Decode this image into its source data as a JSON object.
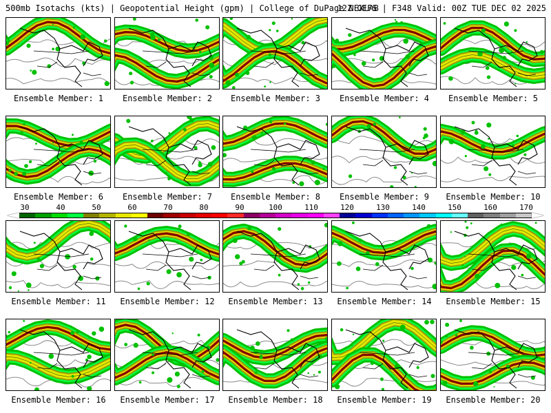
{
  "header": {
    "title": "500mb Isotachs (kts) | Geopotential Height (gpm) | College of DuPage NEXLAB",
    "run": "12Z GEFS | F348 Valid: 00Z TUE DEC 02 2025"
  },
  "colorbar": {
    "ticks": [
      "30",
      "40",
      "50",
      "60",
      "70",
      "80",
      "90",
      "100",
      "110",
      "120",
      "130",
      "140",
      "150",
      "160",
      "170"
    ],
    "colors": [
      "#006400",
      "#00a000",
      "#00dc00",
      "#00ff40",
      "#808000",
      "#b4b400",
      "#e6e600",
      "#ffff00",
      "#6e0000",
      "#a00000",
      "#c80000",
      "#e60000",
      "#ff0000",
      "#ff2828",
      "#8c0064",
      "#b40096",
      "#d200c8",
      "#e600e6",
      "#ff00ff",
      "#ff40ff",
      "#000096",
      "#0000d2",
      "#0032ff",
      "#0064ff",
      "#0096ff",
      "#00c8ff",
      "#00ffff",
      "#64ffff",
      "#606060",
      "#808080",
      "#a0a0a0",
      "#c8c8c8"
    ]
  },
  "panels": [
    {
      "label": "Ensemble Member: 1"
    },
    {
      "label": "Ensemble Member: 2"
    },
    {
      "label": "Ensemble Member: 3"
    },
    {
      "label": "Ensemble Member: 4"
    },
    {
      "label": "Ensemble Member: 5"
    },
    {
      "label": "Ensemble Member: 6"
    },
    {
      "label": "Ensemble Member: 7"
    },
    {
      "label": "Ensemble Member: 8"
    },
    {
      "label": "Ensemble Member: 9"
    },
    {
      "label": "Ensemble Member: 10"
    },
    {
      "label": "Ensemble Member: 11"
    },
    {
      "label": "Ensemble Member: 12"
    },
    {
      "label": "Ensemble Member: 13"
    },
    {
      "label": "Ensemble Member: 14"
    },
    {
      "label": "Ensemble Member: 15"
    },
    {
      "label": "Ensemble Member: 16"
    },
    {
      "label": "Ensemble Member: 17"
    },
    {
      "label": "Ensemble Member: 18"
    },
    {
      "label": "Ensemble Member: 19"
    },
    {
      "label": "Ensemble Member: 20"
    }
  ]
}
